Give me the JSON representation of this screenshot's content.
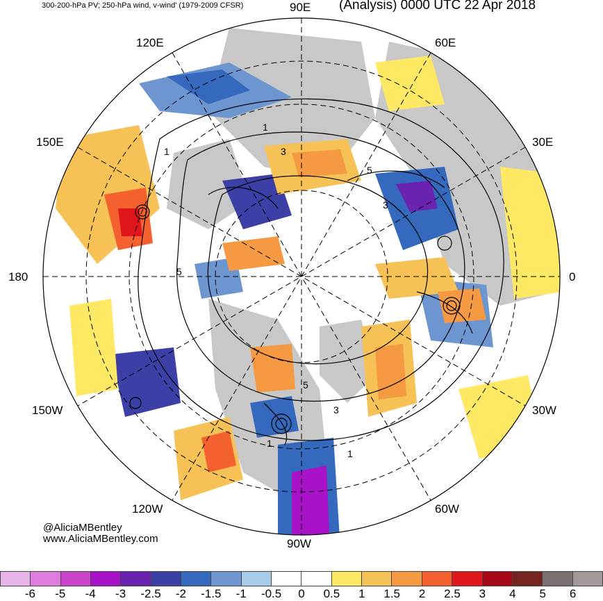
{
  "header": {
    "title": "300-200-hPa PV; 250-hPa wind, v-wind' (1979-2009 CFSR)",
    "analysis": "(Analysis) 0000 UTC 22 Apr 2018"
  },
  "map": {
    "projection": "north-polar-stereographic",
    "longitude_labels": [
      "90E",
      "60E",
      "30E",
      "0",
      "30W",
      "60W",
      "90W",
      "120W",
      "150W",
      "180",
      "150E",
      "120E"
    ],
    "contour_labels": [
      "1",
      "3",
      "5"
    ],
    "colors": {
      "land": "#c8c8c8",
      "ocean": "#ffffff",
      "contour": "#000000",
      "grid": "#000000"
    }
  },
  "credits": {
    "handle": "@AliciaMBentley",
    "website": "www.AliciaMBentley.com"
  },
  "colorbar": {
    "colors": [
      "#e8b4e8",
      "#e07be0",
      "#cc44cc",
      "#a812c8",
      "#6a22b0",
      "#3b3fa6",
      "#3569bd",
      "#6d96d1",
      "#a9cbe6",
      "#ffffff",
      "#ffffff",
      "#ffe863",
      "#f7c255",
      "#f59a42",
      "#f5602f",
      "#e0161c",
      "#a8081a",
      "#762420",
      "#7a7070",
      "#a39999"
    ],
    "tick_labels": [
      "-6",
      "-5",
      "-4",
      "-3",
      "-2.5",
      "-2",
      "-1.5",
      "-1",
      "-0.5",
      "0",
      "0.5",
      "1",
      "1.5",
      "2",
      "2.5",
      "3",
      "4",
      "5",
      "6"
    ]
  }
}
